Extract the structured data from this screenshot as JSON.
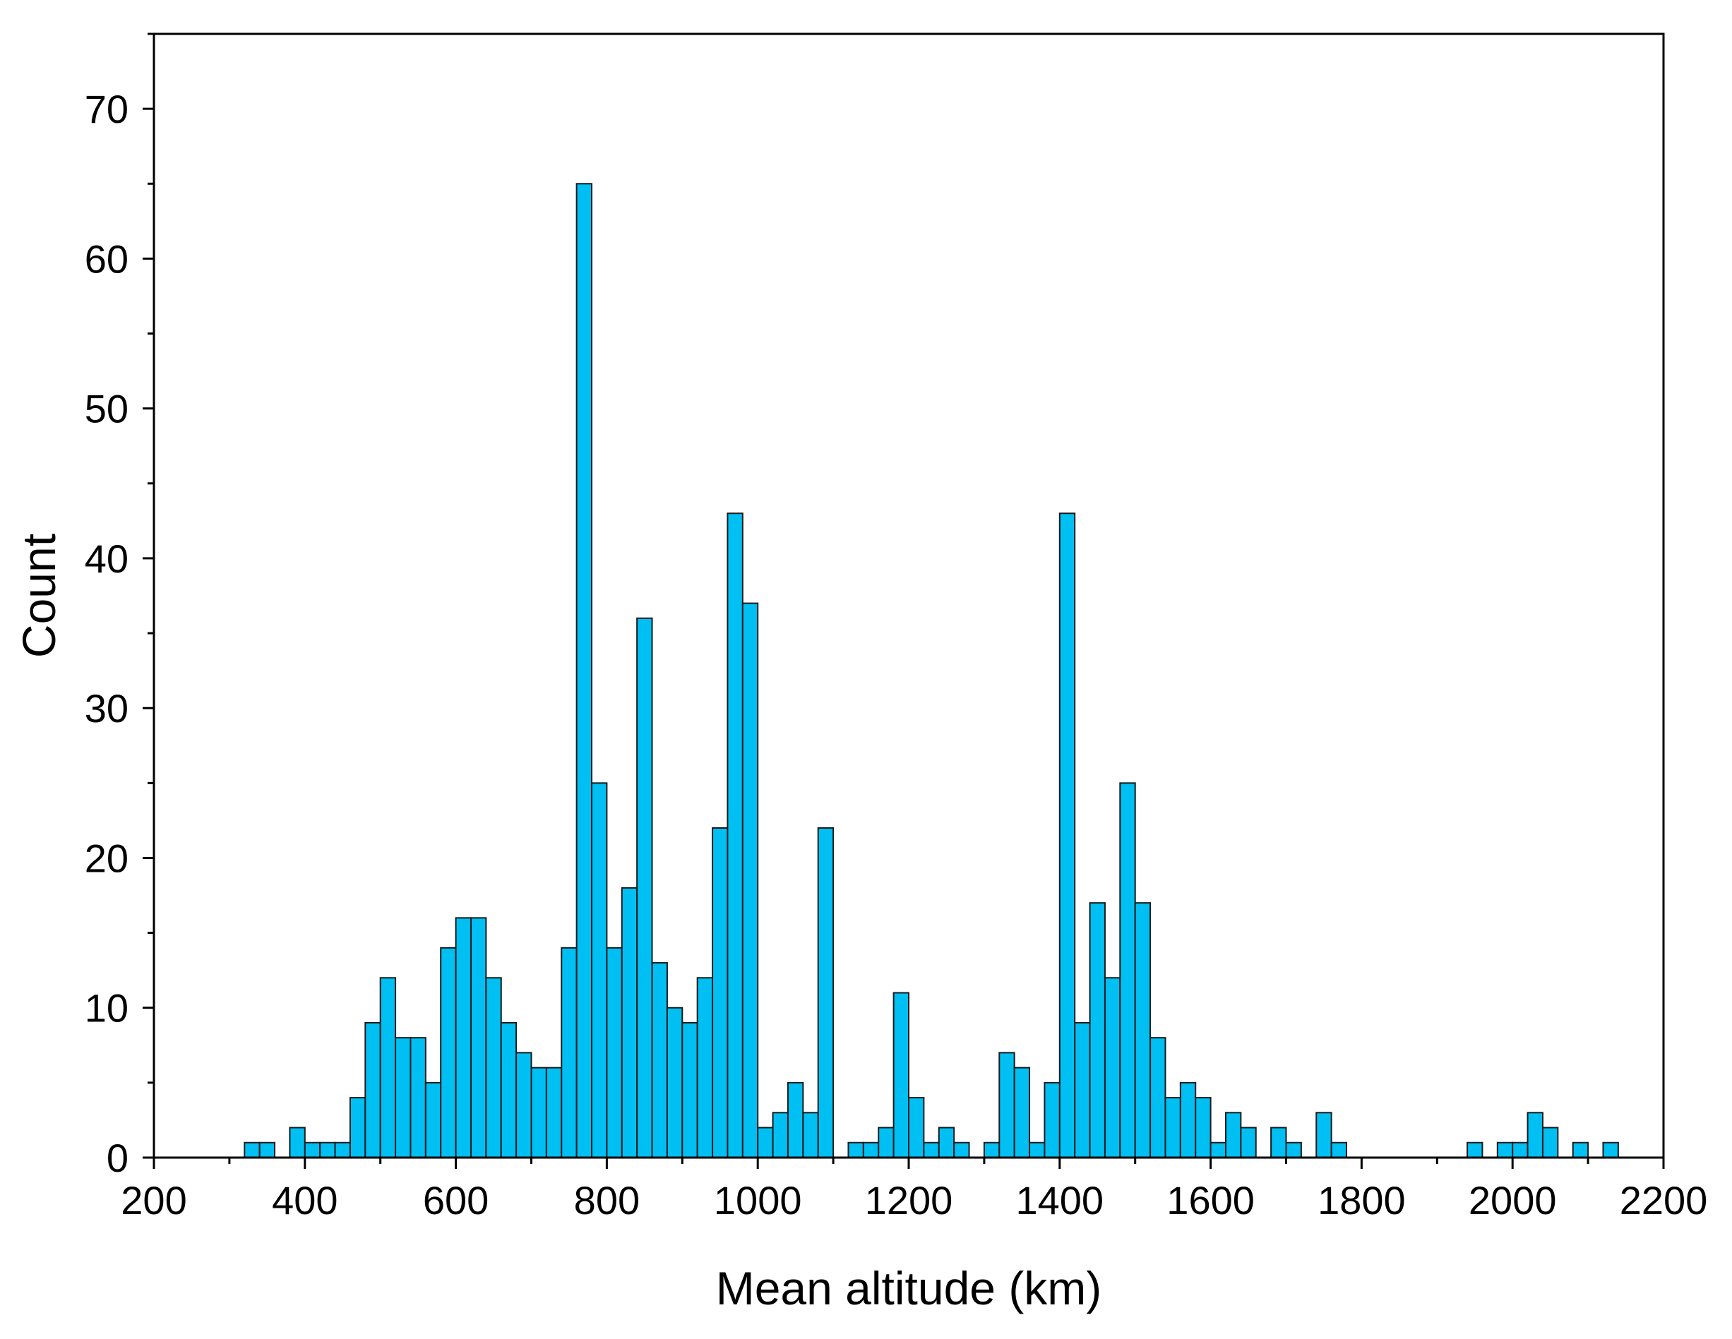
{
  "chart_data": {
    "type": "bar",
    "xlabel": "Mean altitude (km)",
    "ylabel": "Count",
    "xlim": [
      200,
      2200
    ],
    "ylim": [
      0,
      75
    ],
    "bin_width": 20,
    "x_ticks": [
      "200",
      "400",
      "600",
      "800",
      "1000",
      "1200",
      "1400",
      "1600",
      "1800",
      "2000",
      "2200"
    ],
    "y_ticks": [
      "0",
      "10",
      "20",
      "30",
      "40",
      "50",
      "60",
      "70"
    ],
    "bar_color": "#00BFF3",
    "edge_color": "#1a1a1a",
    "grid": false,
    "bins": [
      {
        "x0": 320,
        "count": 1
      },
      {
        "x0": 340,
        "count": 1
      },
      {
        "x0": 380,
        "count": 2
      },
      {
        "x0": 400,
        "count": 1
      },
      {
        "x0": 420,
        "count": 1
      },
      {
        "x0": 440,
        "count": 1
      },
      {
        "x0": 460,
        "count": 4
      },
      {
        "x0": 480,
        "count": 9
      },
      {
        "x0": 500,
        "count": 12
      },
      {
        "x0": 520,
        "count": 8
      },
      {
        "x0": 540,
        "count": 8
      },
      {
        "x0": 560,
        "count": 5
      },
      {
        "x0": 580,
        "count": 14
      },
      {
        "x0": 600,
        "count": 16
      },
      {
        "x0": 620,
        "count": 16
      },
      {
        "x0": 640,
        "count": 12
      },
      {
        "x0": 660,
        "count": 9
      },
      {
        "x0": 680,
        "count": 7
      },
      {
        "x0": 700,
        "count": 6
      },
      {
        "x0": 720,
        "count": 6
      },
      {
        "x0": 740,
        "count": 14
      },
      {
        "x0": 760,
        "count": 65
      },
      {
        "x0": 780,
        "count": 25
      },
      {
        "x0": 800,
        "count": 14
      },
      {
        "x0": 820,
        "count": 18
      },
      {
        "x0": 840,
        "count": 36
      },
      {
        "x0": 860,
        "count": 13
      },
      {
        "x0": 880,
        "count": 10
      },
      {
        "x0": 900,
        "count": 9
      },
      {
        "x0": 920,
        "count": 12
      },
      {
        "x0": 940,
        "count": 22
      },
      {
        "x0": 960,
        "count": 43
      },
      {
        "x0": 980,
        "count": 37
      },
      {
        "x0": 1000,
        "count": 2
      },
      {
        "x0": 1020,
        "count": 3
      },
      {
        "x0": 1040,
        "count": 5
      },
      {
        "x0": 1060,
        "count": 3
      },
      {
        "x0": 1080,
        "count": 22
      },
      {
        "x0": 1120,
        "count": 1
      },
      {
        "x0": 1140,
        "count": 1
      },
      {
        "x0": 1160,
        "count": 2
      },
      {
        "x0": 1180,
        "count": 11
      },
      {
        "x0": 1200,
        "count": 4
      },
      {
        "x0": 1220,
        "count": 1
      },
      {
        "x0": 1240,
        "count": 2
      },
      {
        "x0": 1260,
        "count": 1
      },
      {
        "x0": 1300,
        "count": 1
      },
      {
        "x0": 1320,
        "count": 7
      },
      {
        "x0": 1340,
        "count": 6
      },
      {
        "x0": 1360,
        "count": 1
      },
      {
        "x0": 1380,
        "count": 5
      },
      {
        "x0": 1400,
        "count": 43
      },
      {
        "x0": 1420,
        "count": 9
      },
      {
        "x0": 1440,
        "count": 17
      },
      {
        "x0": 1460,
        "count": 12
      },
      {
        "x0": 1480,
        "count": 25
      },
      {
        "x0": 1500,
        "count": 17
      },
      {
        "x0": 1520,
        "count": 8
      },
      {
        "x0": 1540,
        "count": 4
      },
      {
        "x0": 1560,
        "count": 5
      },
      {
        "x0": 1580,
        "count": 4
      },
      {
        "x0": 1600,
        "count": 1
      },
      {
        "x0": 1620,
        "count": 3
      },
      {
        "x0": 1640,
        "count": 2
      },
      {
        "x0": 1680,
        "count": 2
      },
      {
        "x0": 1700,
        "count": 1
      },
      {
        "x0": 1740,
        "count": 3
      },
      {
        "x0": 1760,
        "count": 1
      },
      {
        "x0": 1940,
        "count": 1
      },
      {
        "x0": 1980,
        "count": 1
      },
      {
        "x0": 2000,
        "count": 1
      },
      {
        "x0": 2020,
        "count": 3
      },
      {
        "x0": 2040,
        "count": 2
      },
      {
        "x0": 2080,
        "count": 1
      },
      {
        "x0": 2120,
        "count": 1
      }
    ]
  }
}
